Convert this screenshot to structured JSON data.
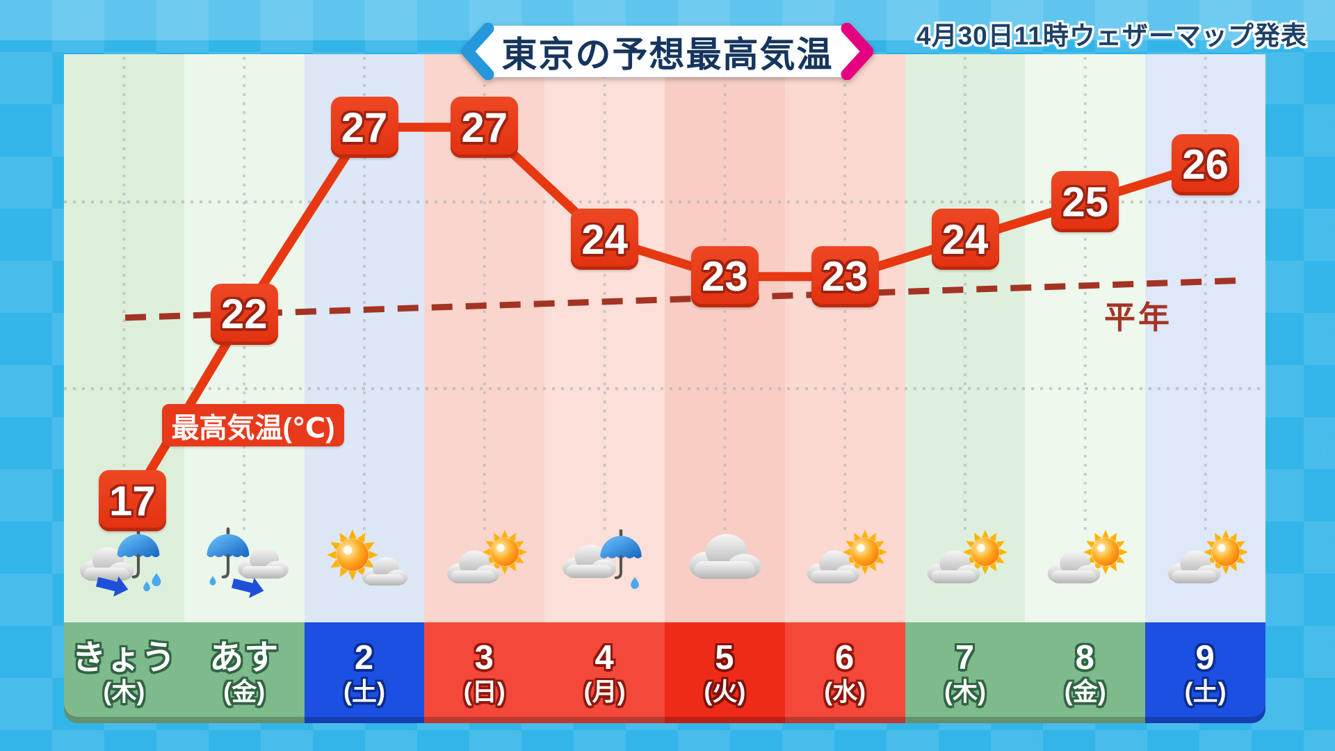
{
  "header": {
    "title": "東京の予想最高気温",
    "issued": "4月30日11時ウェザーマップ発表"
  },
  "labels": {
    "series": "最高気温(℃)",
    "normal": "平年"
  },
  "chart_data": {
    "type": "line",
    "title": "東京の予想最高気温",
    "unit": "℃",
    "categories": [
      "きょう(木)",
      "あす(金)",
      "2(土)",
      "3(日)",
      "4(月)",
      "5(火)",
      "6(水)",
      "7(木)",
      "8(金)",
      "9(土)"
    ],
    "series": [
      {
        "name": "最高気温(℃)",
        "values": [
          17,
          22,
          27,
          27,
          24,
          23,
          23,
          24,
          25,
          26
        ]
      }
    ],
    "normal_line": {
      "label": "平年",
      "start_value": 21.9,
      "end_value": 22.9
    },
    "gridline_temps": [
      20,
      25
    ],
    "y_axis_labels_visible": false,
    "legend_position": "on-chart"
  },
  "days": [
    {
      "label": "きょう",
      "weekday": "(木)",
      "temp": 17,
      "cell": "green",
      "weather": "rain-today"
    },
    {
      "label": "あす",
      "weekday": "(金)",
      "temp": 22,
      "cell": "green",
      "weather": "rain-tomorrow"
    },
    {
      "label": "2",
      "weekday": "(土)",
      "temp": 27,
      "cell": "blue",
      "weather": "sun-then-cloud"
    },
    {
      "label": "3",
      "weekday": "(日)",
      "temp": 27,
      "cell": "red",
      "weather": "cloud-then-sun"
    },
    {
      "label": "4",
      "weekday": "(月)",
      "temp": 24,
      "cell": "red",
      "weather": "rain"
    },
    {
      "label": "5",
      "weekday": "(火)",
      "temp": 23,
      "cell": "red2",
      "weather": "cloudy"
    },
    {
      "label": "6",
      "weekday": "(水)",
      "temp": 23,
      "cell": "red",
      "weather": "cloud-then-sun"
    },
    {
      "label": "7",
      "weekday": "(木)",
      "temp": 24,
      "cell": "green",
      "weather": "cloud-then-sun"
    },
    {
      "label": "8",
      "weekday": "(金)",
      "temp": 25,
      "cell": "green",
      "weather": "cloud-then-sun"
    },
    {
      "label": "9",
      "weekday": "(土)",
      "temp": 26,
      "cell": "blue",
      "weather": "cloud-then-sun"
    }
  ],
  "colors": {
    "background": "#33b5ea",
    "line": "#e73812",
    "value_box": "#e8391b",
    "normal_line": "#a33424",
    "grid": "#aeb6ba",
    "banner_left_accent": "#2597dd",
    "banner_right_accent": "#e4007e",
    "banner_text": "#16355e",
    "date_green": "#7eba8c",
    "date_blue": "#1b50e2",
    "date_red": "#f3483a",
    "date_red_bright": "#ee2b18",
    "column_tints": [
      "#ddefdb",
      "#ebf7ea",
      "#dde7f6",
      "#fad5cd",
      "#fcdfd8",
      "#f8cdc4",
      "#fbd8d0",
      "#def0dd",
      "#eef8ec",
      "#dfe8f8"
    ]
  }
}
